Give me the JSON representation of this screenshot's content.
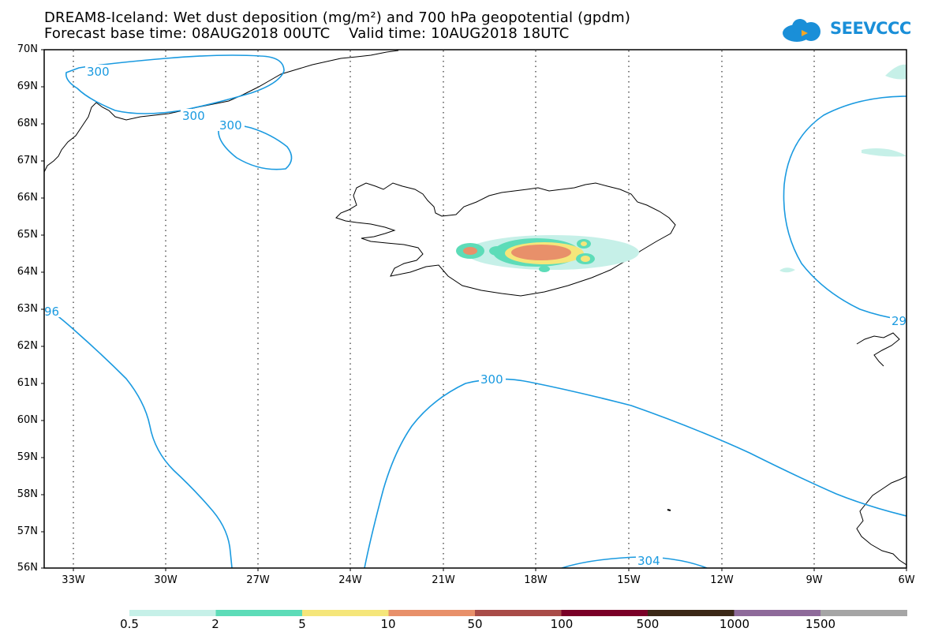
{
  "title_line1": "DREAM8-Iceland: Wet dust deposition (mg/m²) and 700 hPa geopotential (gpdm)",
  "title_line2": "Forecast base time: 08AUG2018 00UTC    Valid time: 10AUG2018 18UTC",
  "logo_text": "SEEVCCC",
  "latitudes": [
    "70N",
    "69N",
    "68N",
    "67N",
    "66N",
    "65N",
    "64N",
    "63N",
    "62N",
    "61N",
    "60N",
    "59N",
    "58N",
    "57N",
    "56N"
  ],
  "longitudes": [
    "33W",
    "30W",
    "27W",
    "24W",
    "21W",
    "18W",
    "15W",
    "12W",
    "9W",
    "6W"
  ],
  "contour_labels": [
    "300",
    "300",
    "300",
    "96",
    "29",
    "300",
    "304"
  ],
  "legend": {
    "ticks": [
      "0.5",
      "2",
      "5",
      "10",
      "50",
      "100",
      "500",
      "1000",
      "1500"
    ],
    "colors": [
      "#c6f0e8",
      "#5ddcb8",
      "#f5e67a",
      "#e8906a",
      "#a94c48",
      "#7a0027",
      "#3b2817",
      "#8e6a9a",
      "#a5a5a5"
    ]
  },
  "colors": {
    "contour": "#1a9ae0",
    "coast": "#000000"
  }
}
